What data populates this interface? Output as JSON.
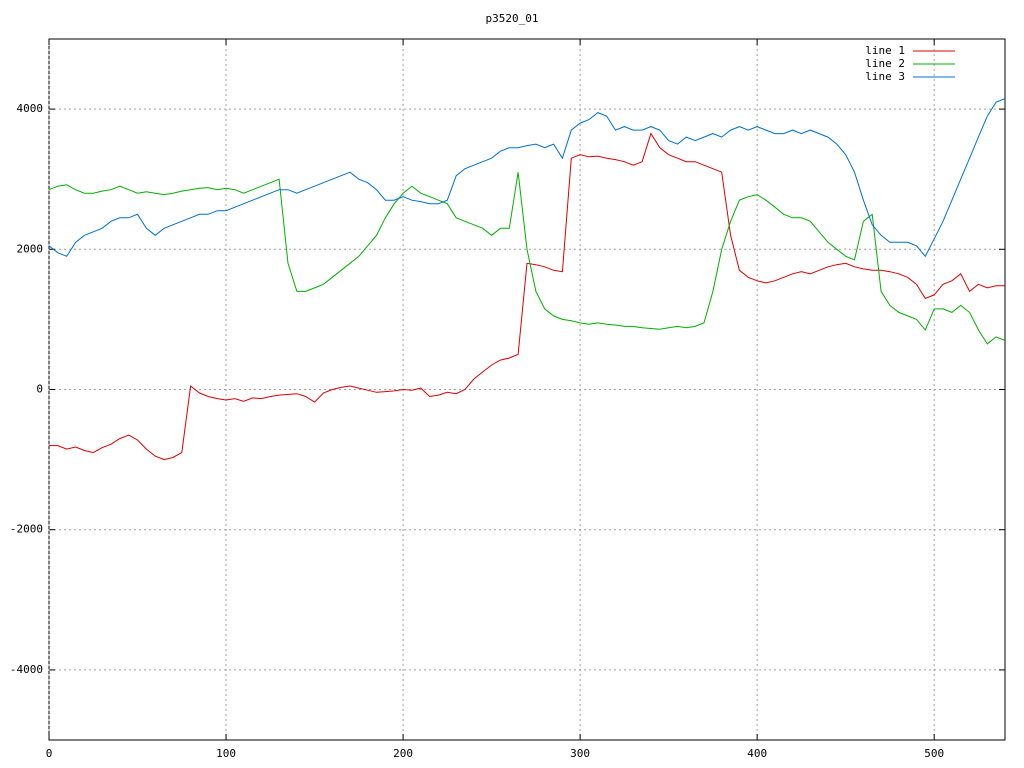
{
  "chart_data": {
    "type": "line",
    "title": "p3520_01",
    "x": [
      0,
      5,
      10,
      15,
      20,
      25,
      30,
      35,
      40,
      45,
      50,
      55,
      60,
      65,
      70,
      75,
      80,
      85,
      90,
      95,
      100,
      105,
      110,
      115,
      120,
      125,
      130,
      135,
      140,
      145,
      150,
      155,
      160,
      165,
      170,
      175,
      180,
      185,
      190,
      195,
      200,
      205,
      210,
      215,
      220,
      225,
      230,
      235,
      240,
      245,
      250,
      255,
      260,
      265,
      270,
      275,
      280,
      285,
      290,
      295,
      300,
      305,
      310,
      315,
      320,
      325,
      330,
      335,
      340,
      345,
      350,
      355,
      360,
      365,
      370,
      375,
      380,
      385,
      390,
      395,
      400,
      405,
      410,
      415,
      420,
      425,
      430,
      435,
      440,
      445,
      450,
      455,
      460,
      465,
      470,
      475,
      480,
      485,
      490,
      495,
      500,
      505,
      510,
      515,
      520,
      525,
      530,
      535,
      540
    ],
    "series": [
      {
        "name": "line 1",
        "color": "#dd0000",
        "values": [
          -800,
          -800,
          -850,
          -820,
          -870,
          -900,
          -830,
          -780,
          -700,
          -650,
          -720,
          -850,
          -950,
          -1000,
          -970,
          -900,
          50,
          -50,
          -100,
          -130,
          -150,
          -130,
          -170,
          -120,
          -130,
          -100,
          -80,
          -70,
          -60,
          -100,
          -180,
          -50,
          0,
          30,
          50,
          20,
          -10,
          -40,
          -30,
          -20,
          0,
          -10,
          20,
          -100,
          -80,
          -40,
          -60,
          0,
          150,
          250,
          350,
          420,
          450,
          500,
          1800,
          1780,
          1750,
          1700,
          1680,
          3300,
          3350,
          3320,
          3330,
          3300,
          3280,
          3250,
          3200,
          3250,
          3650,
          3450,
          3350,
          3300,
          3250,
          3250,
          3200,
          3150,
          3100,
          2200,
          1700,
          1600,
          1550,
          1520,
          1550,
          1600,
          1650,
          1680,
          1650,
          1700,
          1750,
          1780,
          1800,
          1750,
          1720,
          1700,
          1700,
          1680,
          1650,
          1600,
          1500,
          1300,
          1350,
          1500,
          1550,
          1650,
          1400,
          1500,
          1450,
          1480,
          1480
        ]
      },
      {
        "name": "line 2",
        "color": "#00b000",
        "values": [
          2850,
          2900,
          2920,
          2850,
          2800,
          2800,
          2830,
          2850,
          2900,
          2850,
          2800,
          2820,
          2800,
          2780,
          2800,
          2830,
          2850,
          2870,
          2880,
          2850,
          2870,
          2850,
          2800,
          2850,
          2900,
          2950,
          3000,
          1800,
          1400,
          1400,
          1450,
          1500,
          1600,
          1700,
          1800,
          1900,
          2050,
          2200,
          2450,
          2650,
          2800,
          2900,
          2800,
          2750,
          2700,
          2650,
          2450,
          2400,
          2350,
          2300,
          2200,
          2300,
          2300,
          3100,
          2000,
          1400,
          1150,
          1050,
          1000,
          980,
          950,
          930,
          950,
          930,
          920,
          900,
          900,
          880,
          870,
          860,
          880,
          900,
          880,
          900,
          950,
          1400,
          2000,
          2400,
          2700,
          2750,
          2780,
          2700,
          2600,
          2500,
          2450,
          2450,
          2400,
          2250,
          2100,
          2000,
          1900,
          1850,
          2400,
          2500,
          1400,
          1200,
          1100,
          1050,
          1000,
          850,
          1150,
          1150,
          1100,
          1200,
          1100,
          850,
          650,
          750,
          700
        ]
      },
      {
        "name": "line 3",
        "color": "#0070d0",
        "values": [
          2050,
          1950,
          1900,
          2100,
          2200,
          2250,
          2300,
          2400,
          2450,
          2450,
          2500,
          2300,
          2200,
          2300,
          2350,
          2400,
          2450,
          2500,
          2500,
          2550,
          2550,
          2600,
          2650,
          2700,
          2750,
          2800,
          2850,
          2850,
          2800,
          2850,
          2900,
          2950,
          3000,
          3050,
          3100,
          3000,
          2950,
          2850,
          2700,
          2700,
          2750,
          2700,
          2680,
          2650,
          2650,
          2700,
          3050,
          3150,
          3200,
          3250,
          3300,
          3400,
          3450,
          3450,
          3480,
          3500,
          3450,
          3500,
          3300,
          3700,
          3800,
          3850,
          3950,
          3900,
          3700,
          3750,
          3700,
          3700,
          3750,
          3700,
          3550,
          3500,
          3600,
          3550,
          3600,
          3650,
          3600,
          3700,
          3750,
          3700,
          3750,
          3700,
          3650,
          3650,
          3700,
          3650,
          3700,
          3650,
          3600,
          3500,
          3350,
          3100,
          2700,
          2350,
          2200,
          2100,
          2100,
          2100,
          2050,
          1900,
          2150,
          2400,
          2700,
          3000,
          3300,
          3600,
          3900,
          4100,
          4150
        ]
      }
    ],
    "xlim": [
      0,
      540
    ],
    "xticks": [
      0,
      100,
      200,
      300,
      400,
      500
    ],
    "ylim": [
      -5000,
      5000
    ],
    "yticks": [
      -4000,
      -2000,
      0,
      2000,
      4000
    ],
    "grid": true,
    "legend": "top-right"
  }
}
